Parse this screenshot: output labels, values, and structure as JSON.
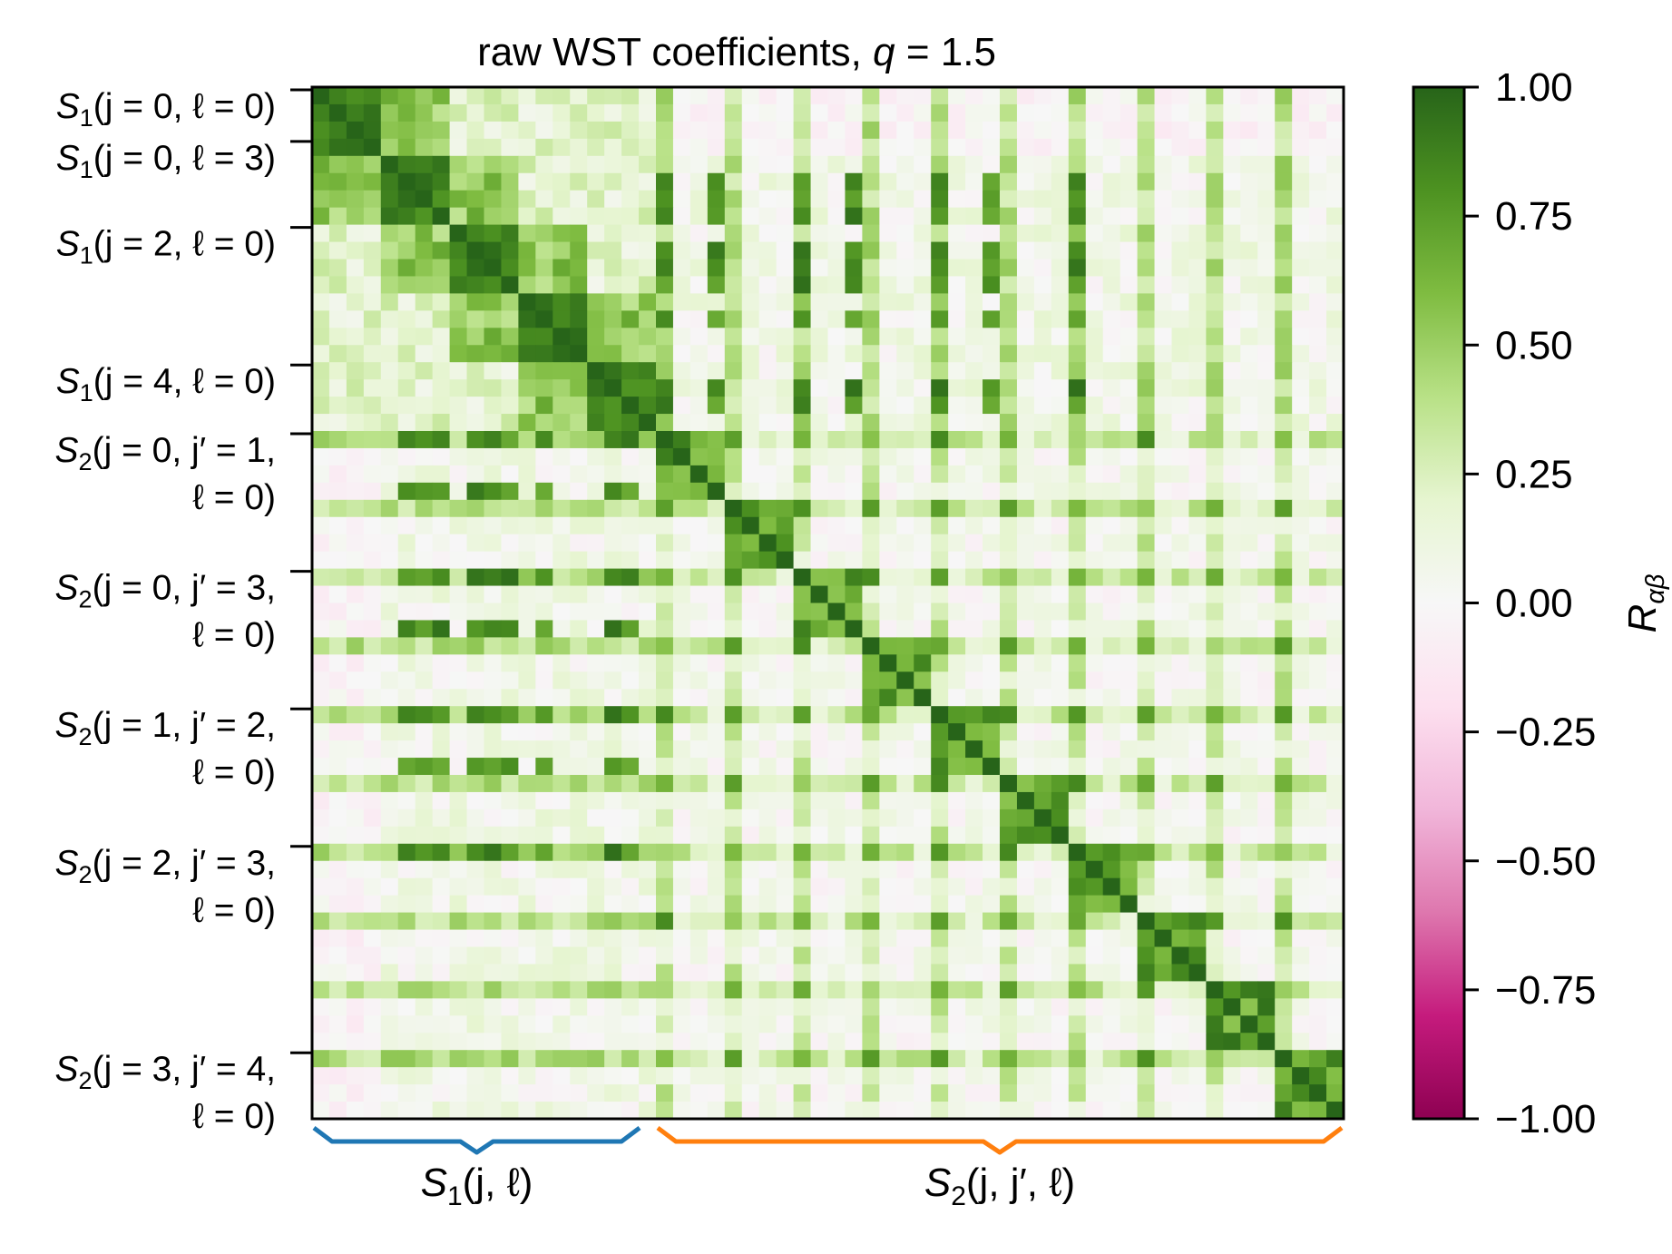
{
  "chart_data": {
    "type": "heatmap",
    "title": "raw WST coefficients, q = 1.5",
    "title_parts": {
      "prefix": "raw WST coefficients, ",
      "var": "q",
      "suffix": " = 1.5"
    },
    "n": 60,
    "n_s1": 20,
    "colormap": "PiYG",
    "vmin": -1.0,
    "vmax": 1.0,
    "colorbar_label": "R_{αβ}",
    "colorbar_label_parts": {
      "main": "R",
      "sub": "αβ"
    },
    "colorbar_ticks": [
      "1.00",
      "0.75",
      "0.50",
      "0.25",
      "0.00",
      "−0.25",
      "−0.50",
      "−0.75",
      "−1.00"
    ],
    "colorbar_tick_values": [
      1.0,
      0.75,
      0.5,
      0.25,
      0.0,
      -0.25,
      -0.5,
      -0.75,
      -1.0
    ],
    "row_labels": [
      {
        "index": 0,
        "lines": [
          "S₁(j = 0, ℓ = 0)"
        ],
        "var": "S",
        "sub": "1",
        "args": "(j = 0, ℓ = 0)"
      },
      {
        "index": 3,
        "lines": [
          "S₁(j = 0, ℓ = 3)"
        ],
        "var": "S",
        "sub": "1",
        "args": "(j = 0, ℓ = 3)"
      },
      {
        "index": 8,
        "lines": [
          "S₁(j = 2, ℓ = 0)"
        ],
        "var": "S",
        "sub": "1",
        "args": "(j = 2, ℓ = 0)"
      },
      {
        "index": 16,
        "lines": [
          "S₁(j = 4, ℓ = 0)"
        ],
        "var": "S",
        "sub": "1",
        "args": "(j = 4, ℓ = 0)"
      },
      {
        "index": 20,
        "var": "S",
        "sub": "2",
        "line1": "(j = 0, j′ = 1,",
        "line2": "ℓ = 0)"
      },
      {
        "index": 28,
        "var": "S",
        "sub": "2",
        "line1": "(j = 0, j′ = 3,",
        "line2": "ℓ = 0)"
      },
      {
        "index": 36,
        "var": "S",
        "sub": "2",
        "line1": "(j = 1, j′ = 2,",
        "line2": "ℓ = 0)"
      },
      {
        "index": 44,
        "var": "S",
        "sub": "2",
        "line1": "(j = 2, j′ = 3,",
        "line2": "ℓ = 0)"
      },
      {
        "index": 56,
        "var": "S",
        "sub": "2",
        "line1": "(j = 3, j′ = 4,",
        "line2": "ℓ = 0)"
      }
    ],
    "groups": [
      {
        "name": "S₁(j, ℓ)",
        "var": "S",
        "sub": "1",
        "args": "(j, ℓ)",
        "start": 0,
        "end": 20,
        "color": "#1f77b4"
      },
      {
        "name": "S₂(j, j′, ℓ)",
        "var": "S",
        "sub": "2",
        "args": "(j, j′, ℓ)",
        "start": 20,
        "end": 60,
        "color": "#ff7f0e"
      }
    ],
    "matrix_description": "60x60 symmetric correlation matrix, diagonal = 1.0; strong positive blocks within S1 scales, stripes at l=0 coefficients, weak negative values near zero"
  }
}
